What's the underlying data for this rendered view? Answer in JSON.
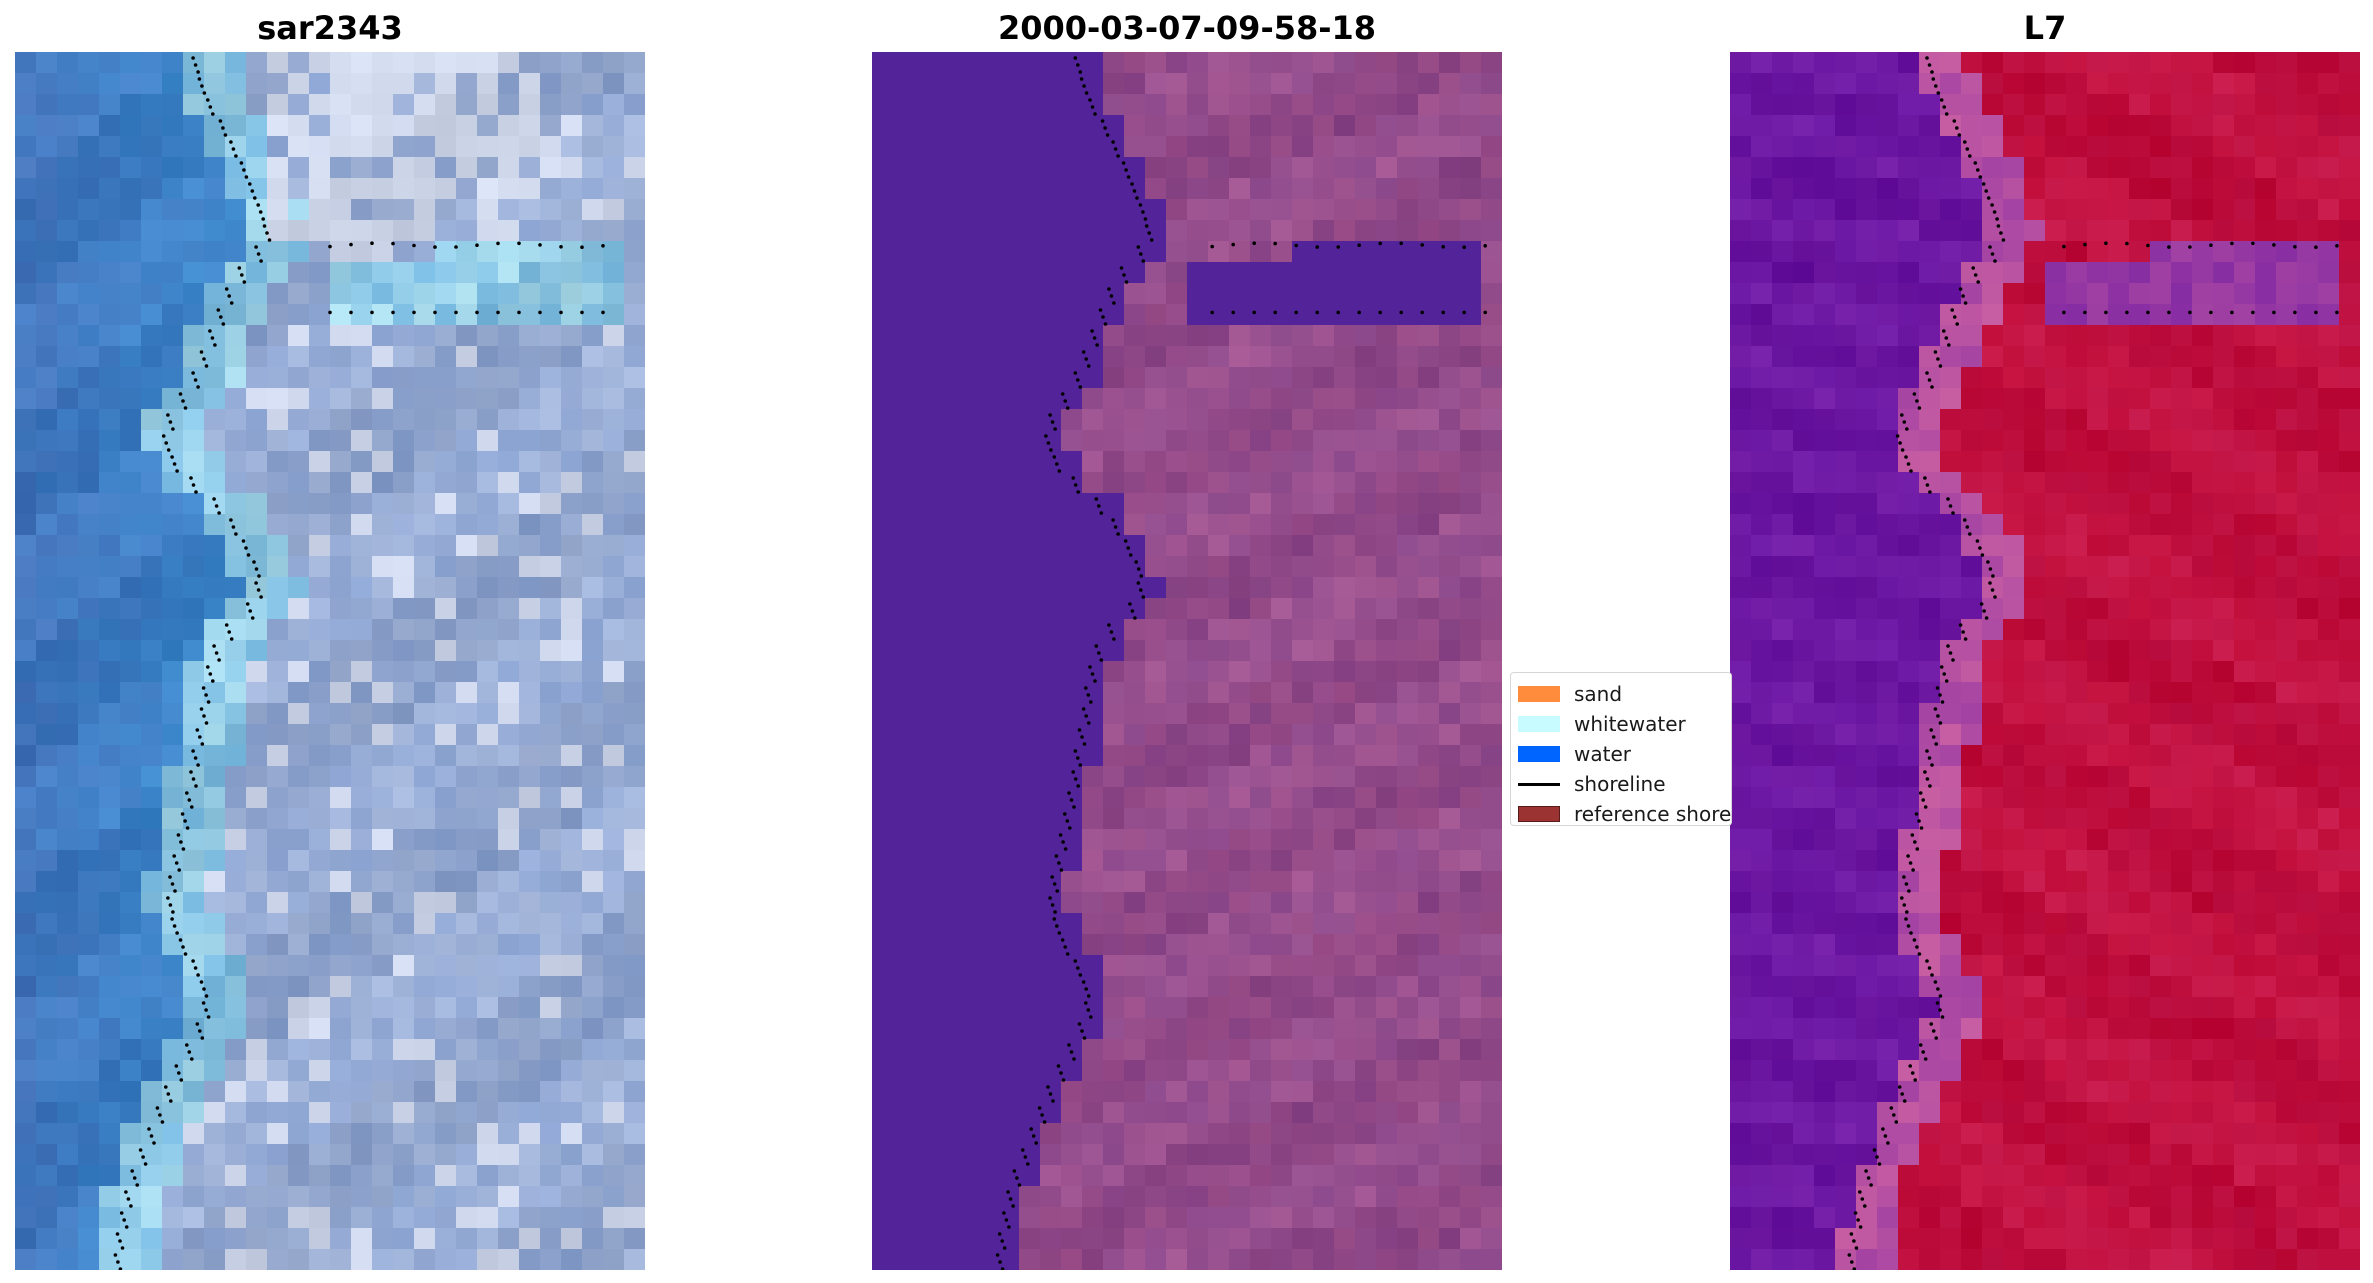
{
  "panels": [
    {
      "title": "sar2343",
      "kind": "rgb"
    },
    {
      "title": "2000-03-07-09-58-18",
      "kind": "classified"
    },
    {
      "title": "L7",
      "kind": "index"
    }
  ],
  "colors": {
    "rgb_water_deep": "#4a78c0",
    "rgb_water_light": "#3f93d6",
    "rgb_land": "#8ca4d2",
    "rgb_white": "#eef1fb",
    "rgb_cyan": "#b7e6f2",
    "class_water": "#532499",
    "class_land": "#8d4a8c",
    "class_land_light": "#b46198",
    "index_water": "#6a17a4",
    "index_transition": "#c85ea2",
    "index_land": "#c20f3c",
    "shoreline_dots": "#000000"
  },
  "legend": {
    "items": [
      {
        "label": "sand",
        "color": "#ff8c3d",
        "type": "patch"
      },
      {
        "label": "whitewater",
        "color": "#c8fbff",
        "type": "patch"
      },
      {
        "label": "water",
        "color": "#0064ff",
        "type": "patch"
      },
      {
        "label": "shoreline",
        "color": "#000000",
        "type": "line"
      },
      {
        "label": "reference shoreline",
        "color": "#9b3333",
        "type": "patch"
      }
    ]
  }
}
